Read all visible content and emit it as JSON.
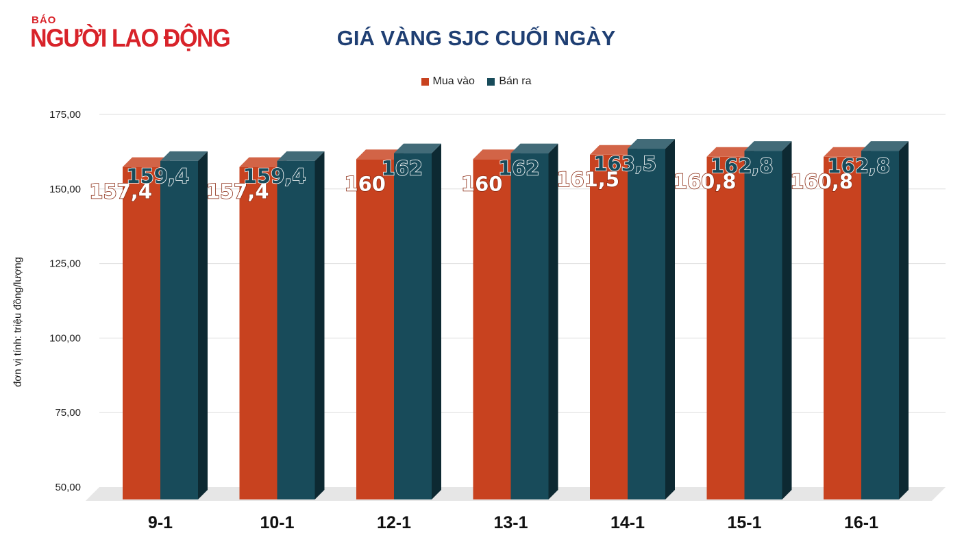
{
  "header": {
    "logo_small": "BÁO",
    "logo_big": "NGƯỜI LAO ĐỘNG",
    "title": "GIÁ VÀNG SJC CUỐI NGÀY"
  },
  "legend": {
    "buy_label": "Mua vào",
    "sell_label": "Bán ra"
  },
  "colors": {
    "buy": "#c8421f",
    "sell": "#184b5a",
    "grid": "#dddddd",
    "title": "#1f3f73"
  },
  "chart_data": {
    "type": "bar",
    "title": "GIÁ VÀNG SJC CUỐI NGÀY",
    "ylabel": "đơn vị tính: triệu đồng/lượng",
    "xlabel": "",
    "categories": [
      "9-1",
      "10-1",
      "12-1",
      "13-1",
      "14-1",
      "15-1",
      "16-1"
    ],
    "series": [
      {
        "name": "Mua vào",
        "values": [
          157.4,
          157.4,
          160,
          160,
          161.5,
          160.8,
          160.8
        ],
        "labels": [
          "157,4",
          "157,4",
          "160",
          "160",
          "161,5",
          "160,8",
          "160,8"
        ]
      },
      {
        "name": "Bán ra",
        "values": [
          159.4,
          159.4,
          162,
          162,
          163.5,
          162.8,
          162.8
        ],
        "labels": [
          "159,4",
          "159,4",
          "162",
          "162",
          "163,5",
          "162,8",
          "162,8"
        ]
      }
    ],
    "yticks": [
      "50,00",
      "75,00",
      "100,00",
      "125,00",
      "150,00",
      "175,00"
    ],
    "ylim": [
      50,
      175
    ],
    "grid": true,
    "legend_position": "top"
  }
}
